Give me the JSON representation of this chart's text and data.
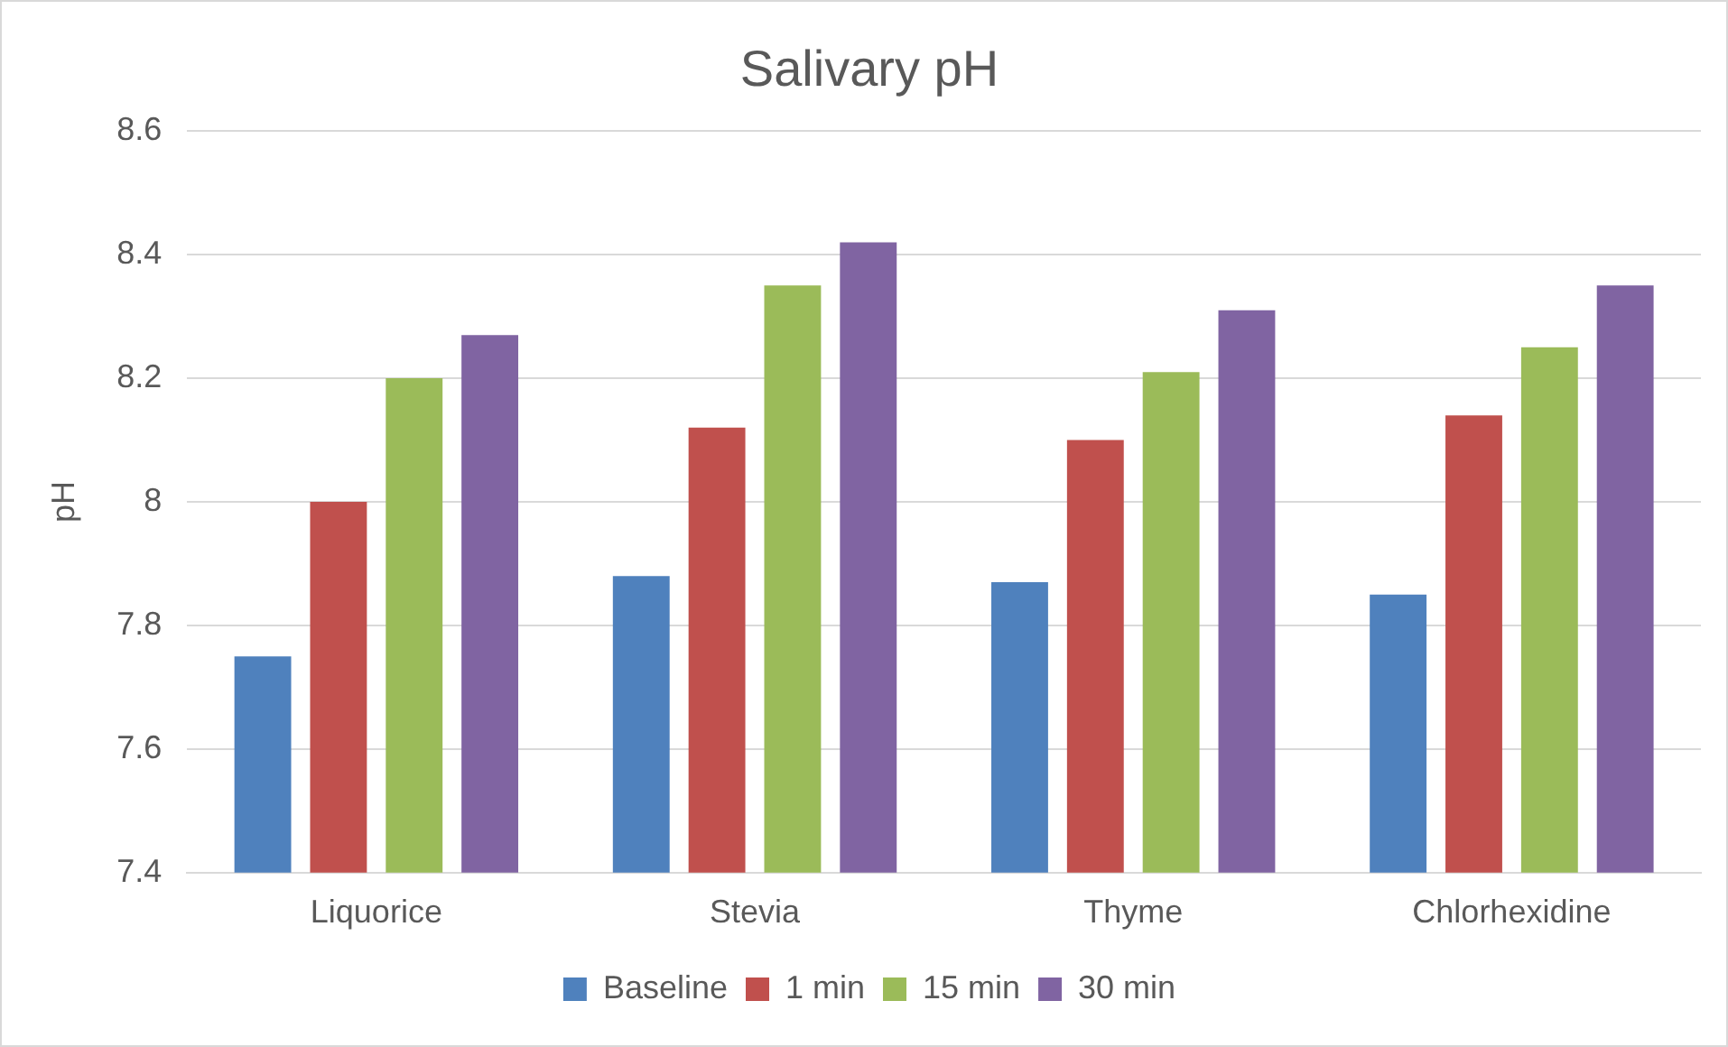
{
  "chart_data": {
    "type": "bar",
    "title": "Salivary pH",
    "ylabel": "pH",
    "categories": [
      "Liquorice",
      "Stevia",
      "Thyme",
      "Chlorhexidine"
    ],
    "series": [
      {
        "name": "Baseline",
        "color": "#4f81bd",
        "values": [
          7.75,
          7.88,
          7.87,
          7.85
        ]
      },
      {
        "name": "1 min",
        "color": "#c0504d",
        "values": [
          8.0,
          8.12,
          8.1,
          8.14
        ]
      },
      {
        "name": "15 min",
        "color": "#9bbb59",
        "values": [
          8.2,
          8.35,
          8.21,
          8.25
        ]
      },
      {
        "name": "30 min",
        "color": "#8064a2",
        "values": [
          8.27,
          8.42,
          8.31,
          8.35
        ]
      }
    ],
    "ylim": [
      7.4,
      8.6
    ],
    "yticks": [
      7.4,
      7.6,
      7.8,
      8,
      8.2,
      8.4,
      8.6
    ],
    "grid": "y",
    "legend": "bottom"
  }
}
